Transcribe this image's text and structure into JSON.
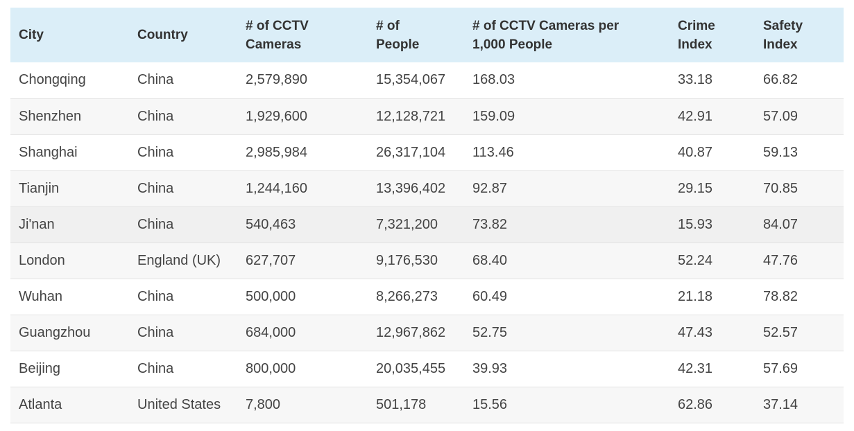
{
  "table": {
    "headers": [
      [
        "City"
      ],
      [
        "Country"
      ],
      [
        "# of CCTV",
        "Cameras"
      ],
      [
        "# of",
        "People"
      ],
      [
        "# of CCTV Cameras per",
        "1,000 People"
      ],
      [
        "Crime",
        "Index"
      ],
      [
        "Safety",
        "Index"
      ]
    ],
    "rows": [
      [
        "Chongqing",
        "China",
        "2,579,890",
        "15,354,067",
        "168.03",
        "33.18",
        "66.82"
      ],
      [
        "Shenzhen",
        "China",
        "1,929,600",
        "12,128,721",
        "159.09",
        "42.91",
        "57.09"
      ],
      [
        "Shanghai",
        "China",
        "2,985,984",
        "26,317,104",
        "113.46",
        "40.87",
        "59.13"
      ],
      [
        "Tianjin",
        "China",
        "1,244,160",
        "13,396,402",
        "92.87",
        "29.15",
        "70.85"
      ],
      [
        "Ji'nan",
        "China",
        "540,463",
        "7,321,200",
        "73.82",
        "15.93",
        "84.07"
      ],
      [
        "London",
        "England (UK)",
        "627,707",
        "9,176,530",
        "68.40",
        "52.24",
        "47.76"
      ],
      [
        "Wuhan",
        "China",
        "500,000",
        "8,266,273",
        "60.49",
        "21.18",
        "78.82"
      ],
      [
        "Guangzhou",
        "China",
        "684,000",
        "12,967,862",
        "52.75",
        "47.43",
        "52.57"
      ],
      [
        "Beijing",
        "China",
        "800,000",
        "20,035,455",
        "39.93",
        "42.31",
        "57.69"
      ],
      [
        "Atlanta",
        "United States",
        "7,800",
        "501,178",
        "15.56",
        "62.86",
        "37.14"
      ]
    ]
  },
  "colors": {
    "header_bg": "#dbeef8",
    "row_alt_bg": "#f7f7f7",
    "row_border": "#e2e2e2"
  }
}
